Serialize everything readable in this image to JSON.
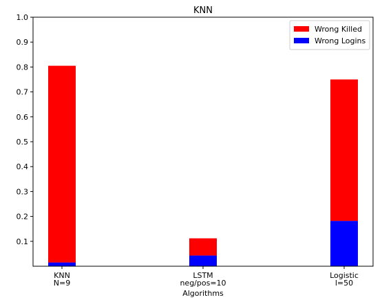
{
  "chart_data": {
    "type": "bar",
    "stacked": true,
    "title": "KNN",
    "xlabel": "Algorithms",
    "ylabel": "",
    "categories": [
      [
        "KNN",
        "N=9"
      ],
      [
        "LSTM",
        "neg/pos=10"
      ],
      [
        "Logistic",
        "l=50"
      ]
    ],
    "series": [
      {
        "name": "Wrong Logins",
        "color": "#0000ff",
        "values": [
          0.015,
          0.043,
          0.182
        ]
      },
      {
        "name": "Wrong Killed",
        "color": "#ff0000",
        "values": [
          0.79,
          0.069,
          0.568
        ]
      }
    ],
    "legend_order": [
      "Wrong Killed",
      "Wrong Logins"
    ],
    "legend_position": "top-right",
    "ylim": [
      0,
      1.0
    ],
    "yticks": [
      "0.1",
      "0.2",
      "0.3",
      "0.4",
      "0.5",
      "0.6",
      "0.7",
      "0.8",
      "0.9",
      "1.0"
    ],
    "grid": false
  }
}
